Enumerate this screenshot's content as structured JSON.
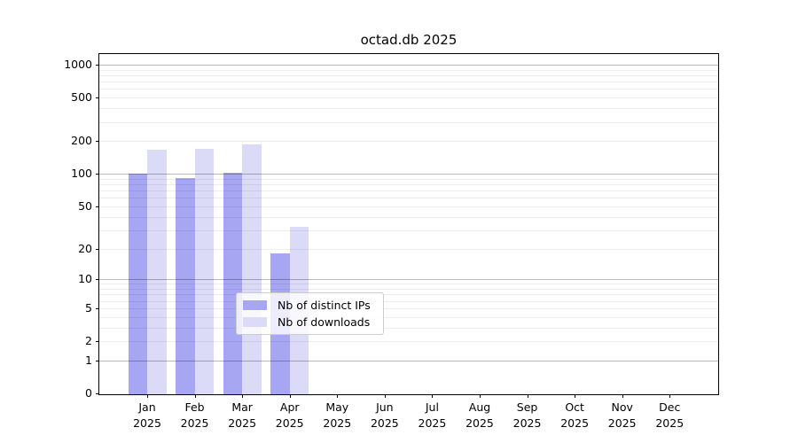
{
  "chart_data": {
    "type": "bar",
    "title": "octad.db 2025",
    "categories": [
      "Jan",
      "Feb",
      "Mar",
      "Apr",
      "May",
      "Jun",
      "Jul",
      "Aug",
      "Sep",
      "Oct",
      "Nov",
      "Dec"
    ],
    "year_label": "2025",
    "series": [
      {
        "name": "Nb of distinct IPs",
        "color": "#a6a6f2",
        "values": [
          100,
          92,
          102,
          18,
          0,
          0,
          0,
          0,
          0,
          0,
          0,
          0
        ]
      },
      {
        "name": "Nb of downloads",
        "color": "#dbdbf8",
        "values": [
          168,
          170,
          185,
          32,
          0,
          0,
          0,
          0,
          0,
          0,
          0,
          0
        ]
      }
    ],
    "y_scale": "log1p",
    "ylim": [
      0,
      1250
    ],
    "y_ticks": [
      0,
      1,
      2,
      5,
      10,
      20,
      50,
      100,
      200,
      500,
      1000
    ],
    "y_major_gridlines": [
      1,
      10,
      100,
      1000
    ],
    "y_minor_gridlines": [
      2,
      3,
      4,
      5,
      6,
      7,
      8,
      9,
      20,
      30,
      40,
      50,
      60,
      70,
      80,
      90,
      200,
      300,
      400,
      500,
      600,
      700,
      800,
      900
    ],
    "grid": true,
    "legend_position": "lower center",
    "colors": {
      "axis": "#000000",
      "major_grid": "#b8b8b8",
      "minor_grid": "#ededed",
      "legend_border": "#cccccc"
    }
  }
}
